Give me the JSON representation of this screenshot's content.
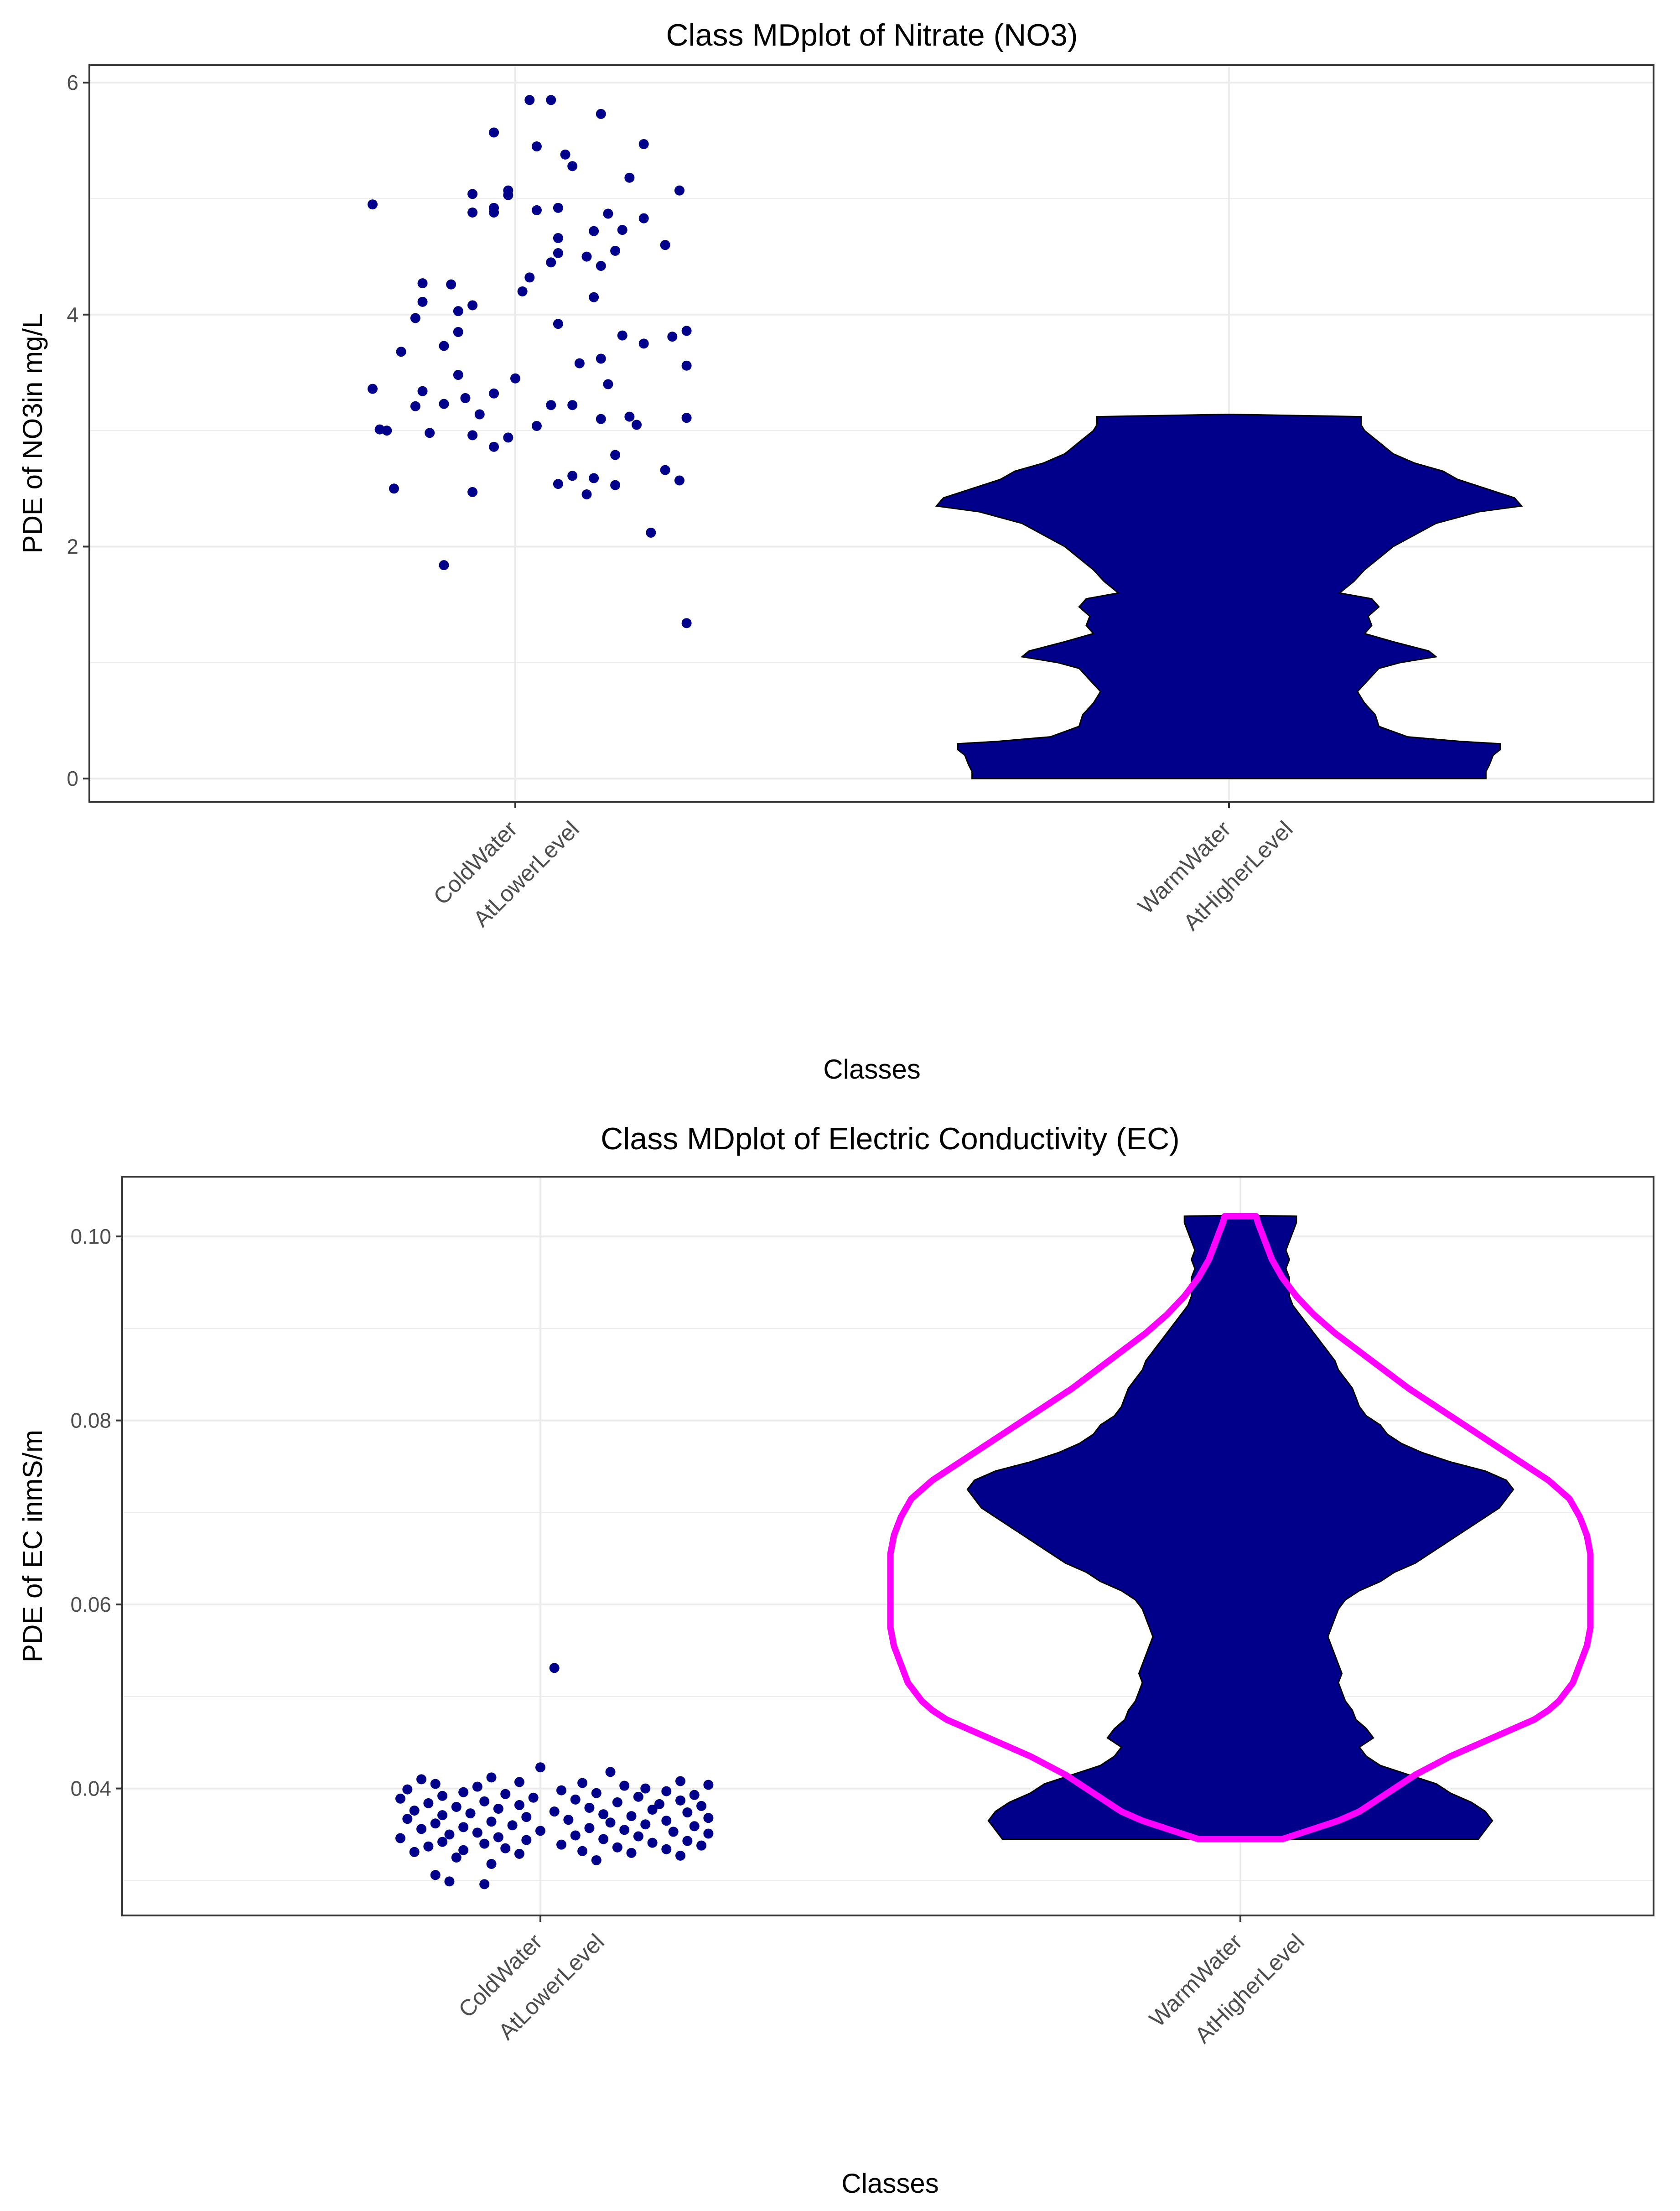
{
  "chart_data": [
    {
      "type": "scatter",
      "title": "Class MDplot of Nitrate (NO3)",
      "xlabel": "Classes",
      "ylabel": "PDE of NO3in mg/L",
      "ylim": [
        -0.2,
        6.15
      ],
      "yticks": [
        0,
        2,
        4,
        6
      ],
      "grid": true,
      "categories": [
        {
          "line1": "ColdWater",
          "line2": "AtLowerLevel"
        },
        {
          "line1": "WarmWater",
          "line2": "AtHigherLevel"
        }
      ],
      "colors": {
        "points": "#00008B",
        "violin": "#00008B",
        "violin_outline": "#000000",
        "grid": "#EBEBEB",
        "panel_border": "#333333"
      },
      "series": [
        {
          "category_index": 0,
          "kind": "jitter",
          "offsets": [
            0.55,
            0.52,
            0.62,
            0.47,
            0.68,
            0.53,
            0.57,
            0.58,
            0.66,
            0.49,
            0.73,
            0.44,
            0.47,
            0.56,
            0.44,
            0.47,
            0.63,
            0.68,
            0.65,
            0.61,
            0.56,
            0.71,
            0.64,
            0.56,
            0.6,
            0.55,
            0.62,
            0.52,
            0.37,
            0.41,
            0.51,
            0.61,
            0.37,
            0.44,
            0.42,
            0.36,
            0.56,
            0.74,
            0.42,
            0.65,
            0.72,
            0.68,
            0.4,
            0.34,
            0.62,
            0.59,
            0.74,
            0.42,
            0.5,
            0.63,
            0.3,
            0.37,
            0.47,
            0.43,
            0.4,
            0.58,
            0.55,
            0.36,
            0.45,
            0.66,
            0.74,
            0.62,
            0.67,
            0.53,
            0.31,
            0.32,
            0.38,
            0.44,
            0.49,
            0.47,
            0.64,
            0.71,
            0.58,
            0.61,
            0.73,
            0.56,
            0.64,
            0.33,
            0.44,
            0.6,
            0.69,
            0.4,
            0.74,
            0.49,
            0.3,
            0.53
          ],
          "values": [
            5.85,
            5.85,
            5.73,
            5.57,
            5.47,
            5.45,
            5.38,
            5.28,
            5.18,
            5.07,
            5.07,
            5.04,
            4.92,
            4.92,
            4.88,
            4.88,
            4.87,
            4.83,
            4.73,
            4.72,
            4.66,
            4.6,
            4.55,
            4.53,
            4.5,
            4.45,
            4.42,
            4.32,
            4.27,
            4.26,
            4.2,
            4.15,
            4.11,
            4.08,
            4.03,
            3.97,
            3.92,
            3.86,
            3.85,
            3.82,
            3.81,
            3.75,
            3.73,
            3.68,
            3.62,
            3.58,
            3.56,
            3.48,
            3.45,
            3.4,
            3.36,
            3.34,
            3.32,
            3.28,
            3.23,
            3.22,
            3.22,
            3.21,
            3.14,
            3.12,
            3.11,
            3.1,
            3.05,
            3.04,
            3.01,
            3.0,
            2.98,
            2.96,
            2.94,
            2.86,
            2.79,
            2.66,
            2.61,
            2.59,
            2.57,
            2.54,
            2.53,
            2.5,
            2.47,
            2.45,
            2.12,
            1.84,
            1.34,
            5.03,
            4.95,
            4.9
          ]
        },
        {
          "category_index": 1,
          "kind": "violin",
          "density_profile": [
            [
              0.0,
              0.72
            ],
            [
              0.06,
              0.72
            ],
            [
              0.12,
              0.73
            ],
            [
              0.2,
              0.74
            ],
            [
              0.25,
              0.76
            ],
            [
              0.3,
              0.76
            ],
            [
              0.32,
              0.65
            ],
            [
              0.36,
              0.5
            ],
            [
              0.45,
              0.42
            ],
            [
              0.55,
              0.41
            ],
            [
              0.65,
              0.38
            ],
            [
              0.75,
              0.36
            ],
            [
              0.85,
              0.39
            ],
            [
              0.95,
              0.42
            ],
            [
              1.0,
              0.48
            ],
            [
              1.05,
              0.58
            ],
            [
              1.1,
              0.56
            ],
            [
              1.18,
              0.46
            ],
            [
              1.25,
              0.38
            ],
            [
              1.32,
              0.4
            ],
            [
              1.4,
              0.39
            ],
            [
              1.48,
              0.42
            ],
            [
              1.55,
              0.4
            ],
            [
              1.6,
              0.31
            ],
            [
              1.7,
              0.35
            ],
            [
              1.8,
              0.38
            ],
            [
              1.9,
              0.42
            ],
            [
              2.0,
              0.46
            ],
            [
              2.1,
              0.52
            ],
            [
              2.2,
              0.58
            ],
            [
              2.3,
              0.7
            ],
            [
              2.35,
              0.82
            ],
            [
              2.42,
              0.8
            ],
            [
              2.5,
              0.72
            ],
            [
              2.58,
              0.64
            ],
            [
              2.65,
              0.6
            ],
            [
              2.72,
              0.52
            ],
            [
              2.8,
              0.46
            ],
            [
              2.9,
              0.42
            ],
            [
              3.0,
              0.38
            ],
            [
              3.05,
              0.37
            ],
            [
              3.12,
              0.37
            ],
            [
              3.14,
              0.0
            ]
          ]
        }
      ]
    },
    {
      "type": "scatter",
      "title": "Class MDplot of Electric Conductivity (EC)",
      "xlabel": "Classes",
      "ylabel": "PDE of EC inmS/m",
      "ylim": [
        0.0262,
        0.1065
      ],
      "yticks": [
        0.04,
        0.06,
        0.08,
        0.1
      ],
      "ytick_labels": [
        "0.04",
        "0.06",
        "0.08",
        "0.10"
      ],
      "grid": true,
      "categories": [
        {
          "line1": "ColdWater",
          "line2": "AtLowerLevel"
        },
        {
          "line1": "WarmWater",
          "line2": "AtHigherLevel"
        }
      ],
      "colors": {
        "points": "#00008B",
        "violin": "#00008B",
        "violin_outline": "#000000",
        "reference": "#FF00FF",
        "grid": "#EBEBEB",
        "panel_border": "#333333"
      },
      "series": [
        {
          "category_index": 0,
          "kind": "jitter",
          "values": [
            0.0531,
            0.0423,
            0.0418,
            0.0412,
            0.041,
            0.0408,
            0.0407,
            0.0406,
            0.0405,
            0.0404,
            0.0403,
            0.0402,
            0.04,
            0.0399,
            0.0398,
            0.0397,
            0.0396,
            0.0395,
            0.0394,
            0.0393,
            0.0392,
            0.0391,
            0.039,
            0.0389,
            0.0388,
            0.0387,
            0.0386,
            0.0385,
            0.0384,
            0.0383,
            0.0382,
            0.0381,
            0.038,
            0.0379,
            0.0378,
            0.0377,
            0.0376,
            0.0375,
            0.0374,
            0.0373,
            0.0372,
            0.0371,
            0.037,
            0.0369,
            0.0368,
            0.0367,
            0.0366,
            0.0365,
            0.0364,
            0.0363,
            0.0362,
            0.0361,
            0.036,
            0.0359,
            0.0358,
            0.0357,
            0.0356,
            0.0355,
            0.0354,
            0.0353,
            0.0352,
            0.0351,
            0.035,
            0.0349,
            0.0348,
            0.0347,
            0.0346,
            0.0345,
            0.0344,
            0.0343,
            0.0342,
            0.0341,
            0.034,
            0.0339,
            0.0338,
            0.0337,
            0.0336,
            0.0335,
            0.0334,
            0.0333,
            0.0332,
            0.0331,
            0.033,
            0.0329,
            0.0327,
            0.0325,
            0.0322,
            0.0318,
            0.0306,
            0.0299,
            0.0296
          ],
          "offsets": [
            0.52,
            0.5,
            0.6,
            0.43,
            0.33,
            0.7,
            0.47,
            0.56,
            0.35,
            0.74,
            0.62,
            0.41,
            0.65,
            0.31,
            0.53,
            0.68,
            0.39,
            0.58,
            0.45,
            0.72,
            0.36,
            0.64,
            0.49,
            0.3,
            0.55,
            0.7,
            0.42,
            0.61,
            0.34,
            0.67,
            0.47,
            0.73,
            0.38,
            0.57,
            0.44,
            0.66,
            0.32,
            0.52,
            0.71,
            0.4,
            0.59,
            0.36,
            0.63,
            0.48,
            0.74,
            0.31,
            0.54,
            0.68,
            0.43,
            0.6,
            0.35,
            0.65,
            0.46,
            0.72,
            0.39,
            0.57,
            0.33,
            0.62,
            0.5,
            0.69,
            0.41,
            0.74,
            0.37,
            0.55,
            0.64,
            0.44,
            0.3,
            0.59,
            0.48,
            0.71,
            0.36,
            0.66,
            0.42,
            0.53,
            0.73,
            0.34,
            0.61,
            0.45,
            0.68,
            0.39,
            0.56,
            0.32,
            0.63,
            0.47,
            0.7,
            0.38,
            0.58,
            0.43,
            0.35,
            0.37,
            0.42,
            0.36
          ]
        },
        {
          "category_index": 1,
          "kind": "violin",
          "density_profile": [
            [
              0.0345,
              0.68
            ],
            [
              0.0355,
              0.7
            ],
            [
              0.0365,
              0.72
            ],
            [
              0.0375,
              0.7
            ],
            [
              0.0385,
              0.66
            ],
            [
              0.0395,
              0.6
            ],
            [
              0.0405,
              0.56
            ],
            [
              0.0415,
              0.48
            ],
            [
              0.0425,
              0.4
            ],
            [
              0.0435,
              0.36
            ],
            [
              0.0445,
              0.34
            ],
            [
              0.0455,
              0.38
            ],
            [
              0.0465,
              0.36
            ],
            [
              0.0475,
              0.33
            ],
            [
              0.0485,
              0.32
            ],
            [
              0.0495,
              0.3
            ],
            [
              0.0505,
              0.29
            ],
            [
              0.0515,
              0.28
            ],
            [
              0.0525,
              0.29
            ],
            [
              0.0535,
              0.28
            ],
            [
              0.0545,
              0.27
            ],
            [
              0.0555,
              0.26
            ],
            [
              0.0565,
              0.25
            ],
            [
              0.0575,
              0.26
            ],
            [
              0.0585,
              0.27
            ],
            [
              0.0595,
              0.28
            ],
            [
              0.0605,
              0.3
            ],
            [
              0.0615,
              0.34
            ],
            [
              0.0625,
              0.4
            ],
            [
              0.0635,
              0.44
            ],
            [
              0.0645,
              0.5
            ],
            [
              0.0655,
              0.54
            ],
            [
              0.0665,
              0.58
            ],
            [
              0.0675,
              0.62
            ],
            [
              0.0685,
              0.66
            ],
            [
              0.0695,
              0.7
            ],
            [
              0.0705,
              0.74
            ],
            [
              0.0715,
              0.76
            ],
            [
              0.0725,
              0.78
            ],
            [
              0.0735,
              0.76
            ],
            [
              0.0745,
              0.7
            ],
            [
              0.0755,
              0.6
            ],
            [
              0.0765,
              0.52
            ],
            [
              0.0775,
              0.46
            ],
            [
              0.0785,
              0.42
            ],
            [
              0.0795,
              0.4
            ],
            [
              0.0805,
              0.36
            ],
            [
              0.0815,
              0.34
            ],
            [
              0.0825,
              0.33
            ],
            [
              0.0835,
              0.32
            ],
            [
              0.0845,
              0.3
            ],
            [
              0.0855,
              0.28
            ],
            [
              0.0865,
              0.27
            ],
            [
              0.0875,
              0.25
            ],
            [
              0.0885,
              0.23
            ],
            [
              0.0895,
              0.21
            ],
            [
              0.0905,
              0.19
            ],
            [
              0.0915,
              0.17
            ],
            [
              0.0925,
              0.15
            ],
            [
              0.0935,
              0.14
            ],
            [
              0.0945,
              0.14
            ],
            [
              0.0955,
              0.14
            ],
            [
              0.0965,
              0.13
            ],
            [
              0.0975,
              0.14
            ],
            [
              0.0985,
              0.13
            ],
            [
              0.0995,
              0.14
            ],
            [
              0.1005,
              0.15
            ],
            [
              0.1015,
              0.16
            ],
            [
              0.1022,
              0.16
            ],
            [
              0.1023,
              0.0
            ]
          ],
          "reference_profile": [
            [
              0.0345,
              0.12
            ],
            [
              0.0355,
              0.2
            ],
            [
              0.0365,
              0.28
            ],
            [
              0.0375,
              0.34
            ],
            [
              0.0385,
              0.38
            ],
            [
              0.0395,
              0.42
            ],
            [
              0.0405,
              0.46
            ],
            [
              0.0415,
              0.5
            ],
            [
              0.0425,
              0.55
            ],
            [
              0.0435,
              0.6
            ],
            [
              0.0445,
              0.66
            ],
            [
              0.0455,
              0.72
            ],
            [
              0.0465,
              0.78
            ],
            [
              0.0475,
              0.84
            ],
            [
              0.0485,
              0.88
            ],
            [
              0.0495,
              0.91
            ],
            [
              0.0505,
              0.93
            ],
            [
              0.0515,
              0.95
            ],
            [
              0.0525,
              0.96
            ],
            [
              0.0535,
              0.97
            ],
            [
              0.0545,
              0.98
            ],
            [
              0.0555,
              0.99
            ],
            [
              0.0565,
              0.995
            ],
            [
              0.0575,
              1.0
            ],
            [
              0.0595,
              1.0
            ],
            [
              0.0615,
              1.0
            ],
            [
              0.0635,
              1.0
            ],
            [
              0.0655,
              1.0
            ],
            [
              0.0675,
              0.99
            ],
            [
              0.0695,
              0.97
            ],
            [
              0.0715,
              0.94
            ],
            [
              0.0735,
              0.88
            ],
            [
              0.0755,
              0.8
            ],
            [
              0.0775,
              0.72
            ],
            [
              0.0795,
              0.64
            ],
            [
              0.0815,
              0.56
            ],
            [
              0.0835,
              0.48
            ],
            [
              0.0855,
              0.41
            ],
            [
              0.0875,
              0.34
            ],
            [
              0.0895,
              0.27
            ],
            [
              0.0915,
              0.21
            ],
            [
              0.0935,
              0.16
            ],
            [
              0.0955,
              0.12
            ],
            [
              0.0975,
              0.09
            ],
            [
              0.0995,
              0.07
            ],
            [
              0.1015,
              0.05
            ],
            [
              0.1022,
              0.045
            ]
          ]
        }
      ]
    }
  ]
}
